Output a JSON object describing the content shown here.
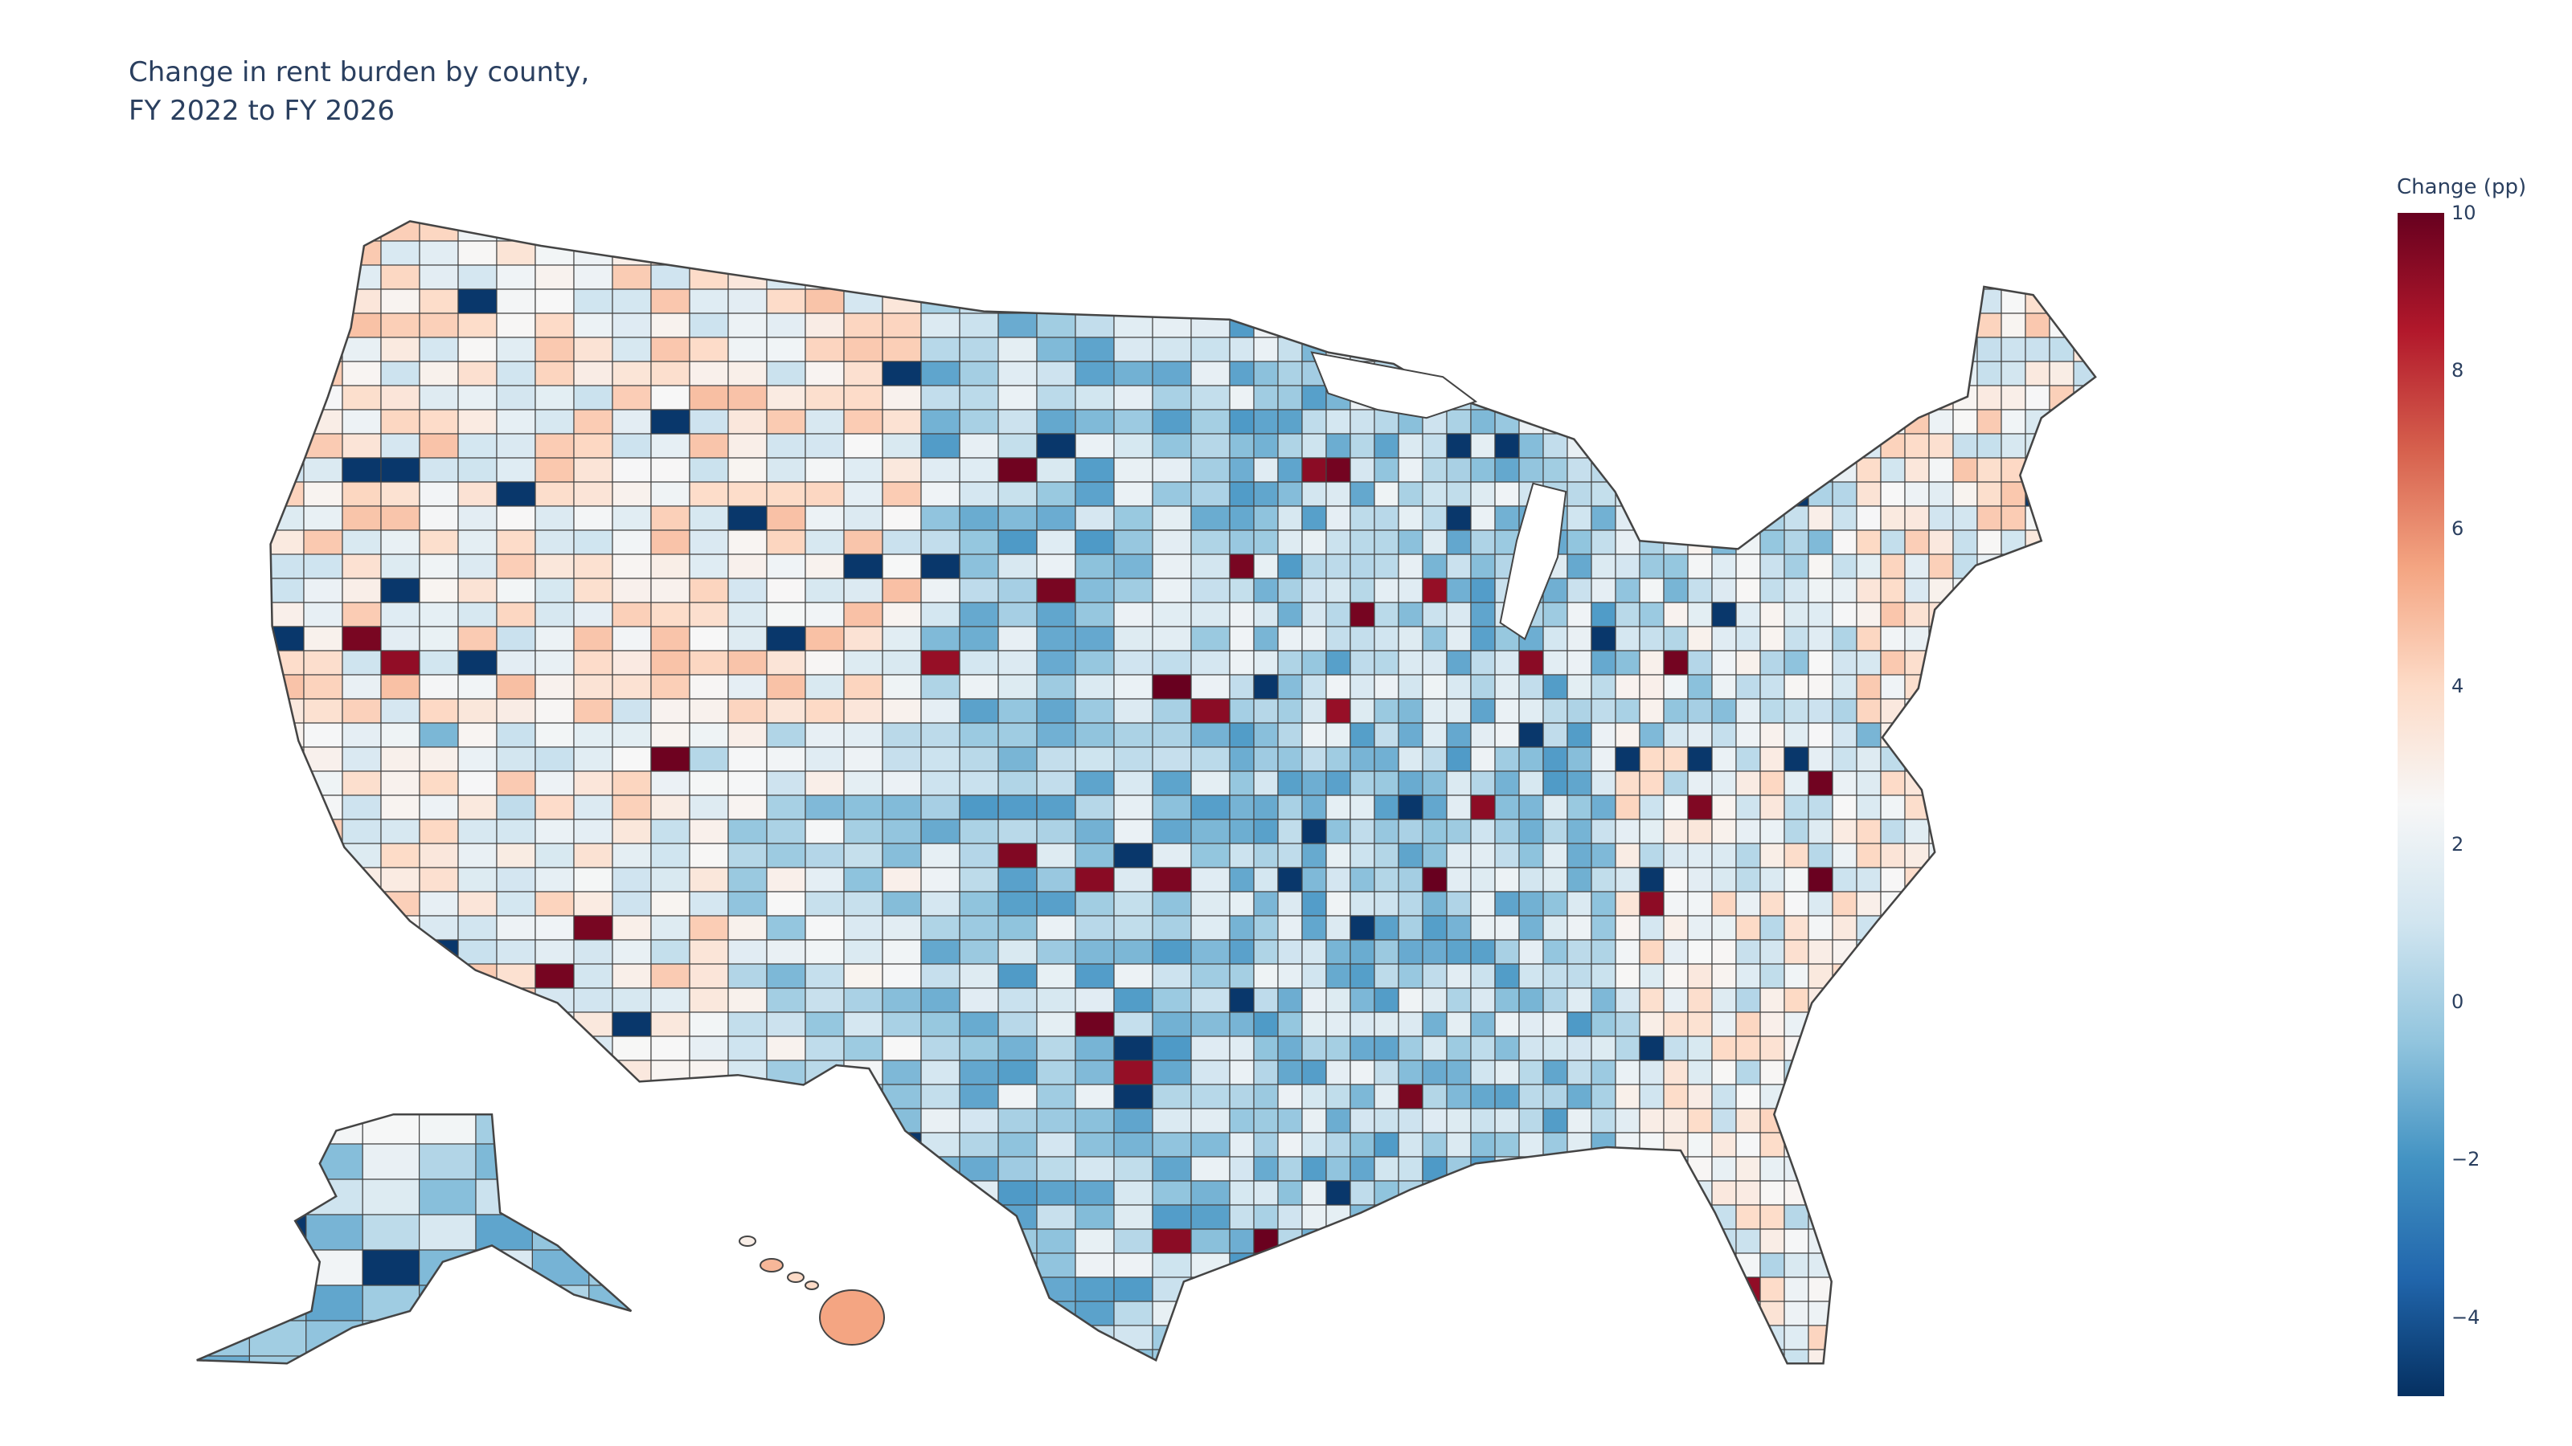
{
  "chart_data": {
    "type": "choropleth",
    "title": "Change in rent burden by county,\nFY 2022 to FY 2026",
    "geography": "US counties (contiguous US, Alaska, Hawaii)",
    "colorbar": {
      "title": "Change (pp)",
      "range": [
        -5,
        10
      ],
      "ticks": [
        10,
        8,
        6,
        4,
        2,
        0,
        -2,
        -4
      ],
      "tick_labels": [
        "10",
        "8",
        "6",
        "4",
        "2",
        "0",
        "−2",
        "−4"
      ],
      "colorscale": [
        "#053061",
        "#2166ac",
        "#4393c3",
        "#92c5de",
        "#d1e5f0",
        "#f7f7f7",
        "#fddbc7",
        "#f4a582",
        "#d6604d",
        "#b2182b",
        "#67001f"
      ]
    },
    "border_color": "#444444"
  }
}
